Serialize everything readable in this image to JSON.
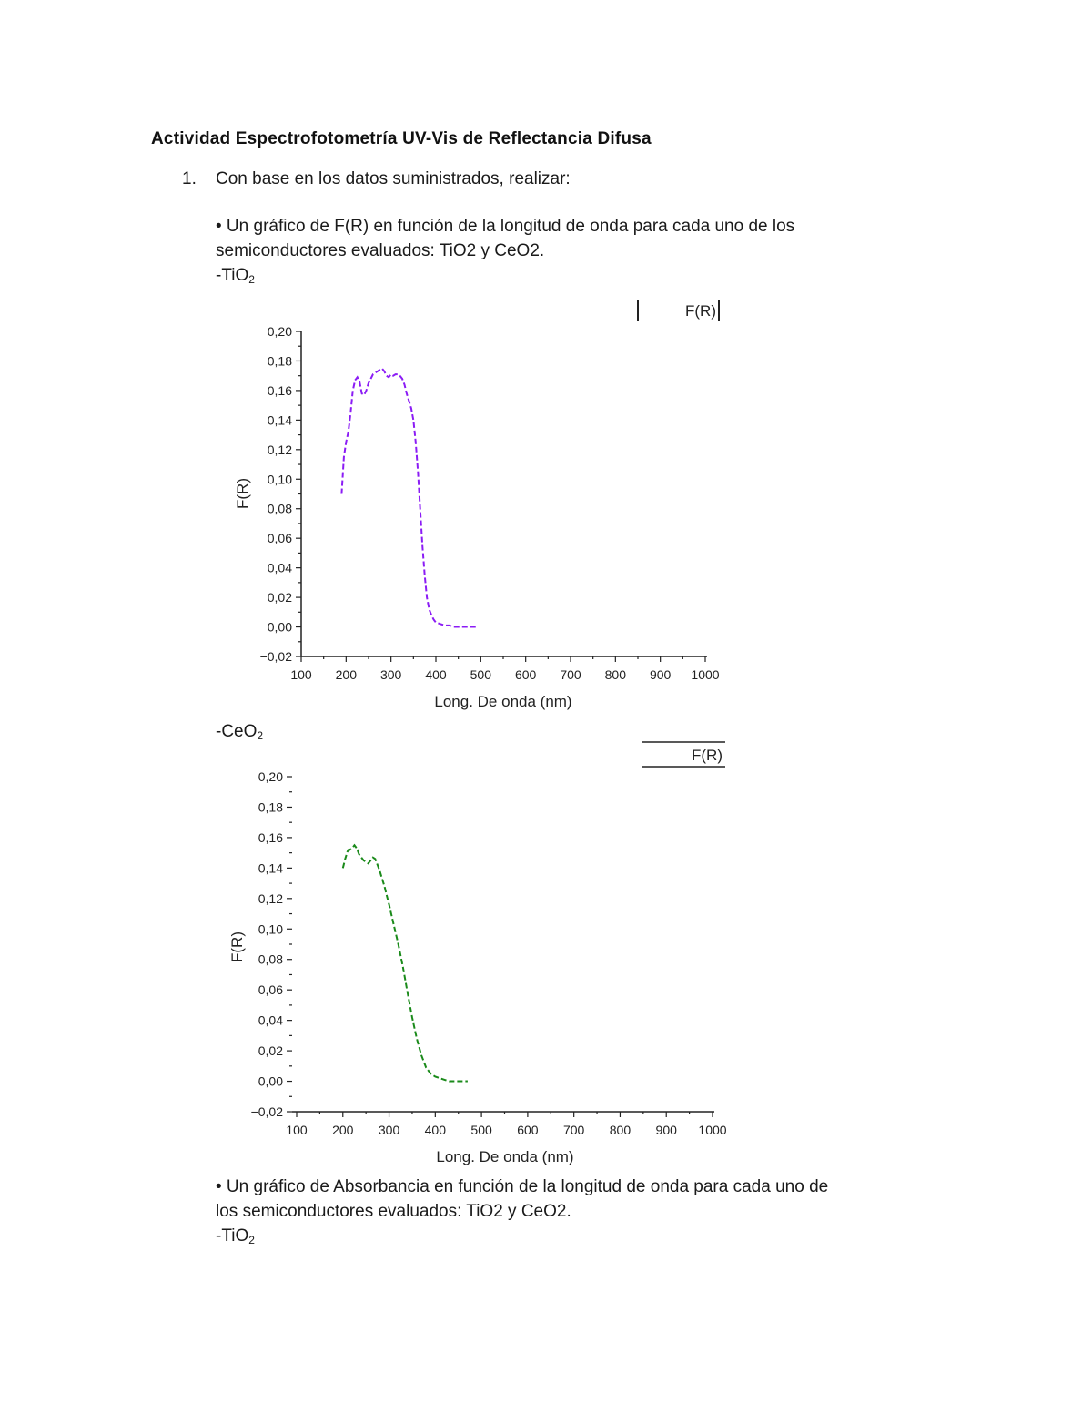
{
  "document": {
    "title": "Actividad Espectrofotometría UV-Vis de Reflectancia Difusa",
    "list_number": "1.",
    "item_text": "Con base en los datos suministrados, realizar:",
    "bullet1_line1": "• Un gráfico de F(R) en función de la longitud de onda para cada uno de los",
    "bullet1_line2": "semiconductores evaluados: TiO2 y CeO2.",
    "label_tio2_prefix": "-TiO",
    "label_tio2_sub": "2",
    "label_ceo2_prefix": "-CeO",
    "label_ceo2_sub": "2",
    "bullet2_line1": "• Un gráfico de Absorbancia en función de la longitud de onda para cada uno de",
    "bullet2_line2": "los semiconductores evaluados: TiO2 y CeO2.",
    "label_tio2b_prefix": "-TiO",
    "label_tio2b_sub": "2"
  },
  "chart_data": [
    {
      "type": "line",
      "title": "TiO2",
      "xlabel": "Long. De onda (nm)",
      "ylabel": "F(R)",
      "legend": [
        "F(R)"
      ],
      "legend_position": "top-right",
      "xlim": [
        100,
        1000
      ],
      "ylim": [
        -0.02,
        0.2
      ],
      "xticks": [
        "100",
        "200",
        "300",
        "400",
        "500",
        "600",
        "700",
        "800",
        "900",
        "1000"
      ],
      "yticks": [
        "−0,02",
        "0,00",
        "0,02",
        "0,04",
        "0,06",
        "0,08",
        "0,10",
        "0,12",
        "0,14",
        "0,16",
        "0,18",
        "0,20"
      ],
      "grid": false,
      "color": "#8b1cf5",
      "series": [
        {
          "name": "F(R)",
          "x": [
            190,
            195,
            200,
            205,
            210,
            215,
            220,
            225,
            230,
            235,
            240,
            245,
            250,
            255,
            260,
            265,
            270,
            275,
            280,
            285,
            290,
            295,
            300,
            305,
            310,
            315,
            320,
            325,
            330,
            335,
            340,
            345,
            350,
            355,
            360,
            365,
            370,
            375,
            380,
            385,
            390,
            395,
            400,
            410,
            420,
            430,
            440,
            450,
            460,
            470,
            480,
            490
          ],
          "values": [
            0.09,
            0.115,
            0.125,
            0.132,
            0.145,
            0.16,
            0.167,
            0.169,
            0.166,
            0.158,
            0.157,
            0.16,
            0.165,
            0.168,
            0.171,
            0.172,
            0.173,
            0.174,
            0.175,
            0.173,
            0.17,
            0.169,
            0.171,
            0.17,
            0.171,
            0.171,
            0.17,
            0.168,
            0.164,
            0.158,
            0.153,
            0.148,
            0.14,
            0.125,
            0.105,
            0.08,
            0.055,
            0.035,
            0.02,
            0.012,
            0.008,
            0.005,
            0.003,
            0.002,
            0.001,
            0.001,
            0.0,
            0.0,
            0.0,
            0.0,
            0.0,
            0.0
          ]
        }
      ]
    },
    {
      "type": "line",
      "title": "CeO2",
      "xlabel": "Long. De onda (nm)",
      "ylabel": "F(R)",
      "legend": [
        "F(R)"
      ],
      "legend_position": "top-right",
      "xlim": [
        100,
        1000
      ],
      "ylim": [
        -0.02,
        0.2
      ],
      "xticks": [
        "100",
        "200",
        "300",
        "400",
        "500",
        "600",
        "700",
        "800",
        "900",
        "1000"
      ],
      "yticks": [
        "−0,02",
        "0,00",
        "0,02",
        "0,04",
        "0,06",
        "0,08",
        "0,10",
        "0,12",
        "0,14",
        "0,16",
        "0,18",
        "0,20"
      ],
      "grid": false,
      "color": "#1a8a1a",
      "series": [
        {
          "name": "F(R)",
          "x": [
            200,
            205,
            210,
            215,
            220,
            225,
            230,
            235,
            240,
            245,
            250,
            255,
            260,
            265,
            270,
            275,
            280,
            285,
            290,
            295,
            300,
            310,
            320,
            330,
            340,
            350,
            360,
            370,
            380,
            390,
            400,
            410,
            420,
            430,
            440,
            450,
            460,
            470
          ],
          "values": [
            0.14,
            0.146,
            0.151,
            0.152,
            0.153,
            0.155,
            0.153,
            0.149,
            0.147,
            0.145,
            0.144,
            0.143,
            0.145,
            0.147,
            0.146,
            0.142,
            0.138,
            0.133,
            0.128,
            0.122,
            0.116,
            0.103,
            0.09,
            0.075,
            0.058,
            0.042,
            0.028,
            0.017,
            0.009,
            0.005,
            0.003,
            0.002,
            0.001,
            0.0,
            0.0,
            0.0,
            0.0,
            0.0
          ]
        }
      ]
    }
  ]
}
